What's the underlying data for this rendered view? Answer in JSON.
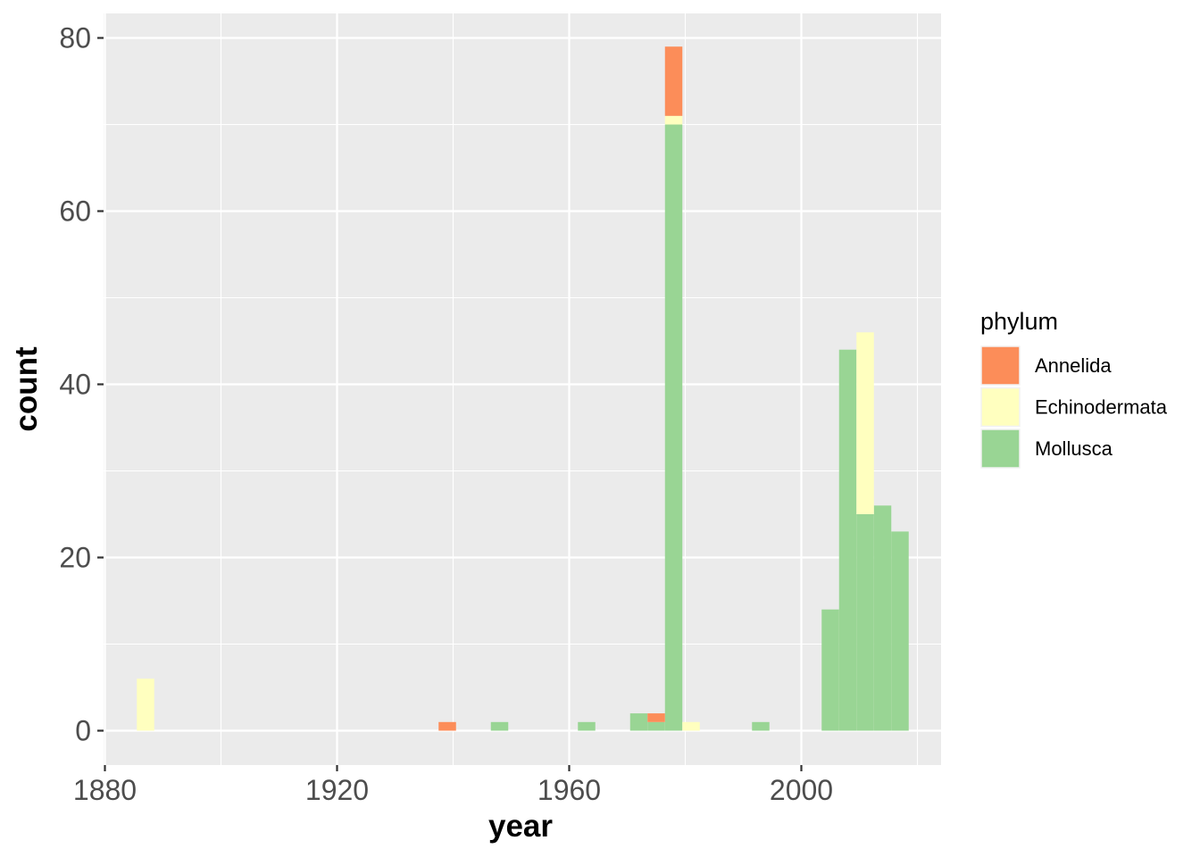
{
  "chart_data": {
    "type": "bar",
    "subtype": "stacked-histogram",
    "title": "",
    "xlabel": "year",
    "ylabel": "count",
    "xlim": [
      1880,
      2023
    ],
    "ylim": [
      0,
      82
    ],
    "x_ticks": [
      1880,
      1920,
      1960,
      2000
    ],
    "y_ticks": [
      0,
      20,
      40,
      60,
      80
    ],
    "bin_width": 3,
    "grid": true,
    "legend": {
      "title": "phylum",
      "position": "right"
    },
    "stack_order": [
      "Mollusca",
      "Echinodermata",
      "Annelida"
    ],
    "series": [
      {
        "name": "Annelida",
        "color": "#FC8D59",
        "bins": [
          {
            "x": 1939,
            "count": 1
          },
          {
            "x": 1975,
            "count": 1
          },
          {
            "x": 1978,
            "count": 8
          }
        ]
      },
      {
        "name": "Echinodermata",
        "color": "#FFFFBF",
        "bins": [
          {
            "x": 1887,
            "count": 6
          },
          {
            "x": 1978,
            "count": 1
          },
          {
            "x": 1981,
            "count": 1
          },
          {
            "x": 2011,
            "count": 21
          }
        ]
      },
      {
        "name": "Mollusca",
        "color": "#99D594",
        "bins": [
          {
            "x": 1948,
            "count": 1
          },
          {
            "x": 1963,
            "count": 1
          },
          {
            "x": 1972,
            "count": 2
          },
          {
            "x": 1975,
            "count": 1
          },
          {
            "x": 1978,
            "count": 70
          },
          {
            "x": 1993,
            "count": 1
          },
          {
            "x": 2005,
            "count": 14
          },
          {
            "x": 2008,
            "count": 44
          },
          {
            "x": 2011,
            "count": 25
          },
          {
            "x": 2014,
            "count": 26
          },
          {
            "x": 2017,
            "count": 23
          }
        ]
      }
    ],
    "colors": {
      "panel_bg": "#EBEBEB",
      "grid": "#FFFFFF"
    }
  }
}
